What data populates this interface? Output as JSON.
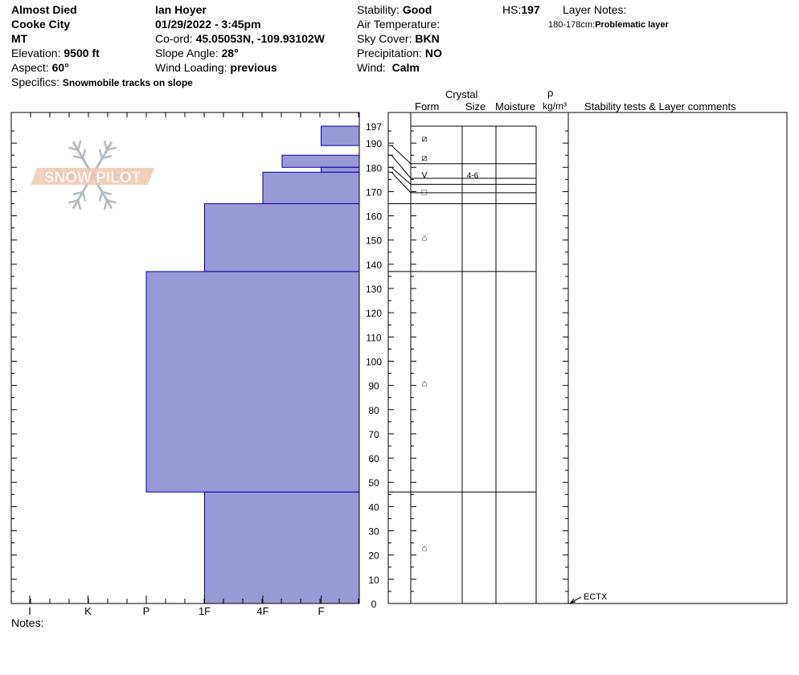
{
  "header": {
    "location_name": "Almost Died",
    "area": "Cooke City",
    "state": "MT",
    "elevation_label": "Elevation:",
    "elevation_value": "9500 ft",
    "aspect_label": "Aspect:",
    "aspect_value": "60°",
    "specifics_label": "Specifics:",
    "specifics_value": "Snowmobile tracks on slope",
    "observer": "Ian Hoyer",
    "datetime": "01/29/2022 - 3:45pm",
    "coord_label": "Co-ord:",
    "coord_value": "45.05053N, -109.93102W",
    "slope_label": "Slope Angle:",
    "slope_value": "28°",
    "wind_loading_label": "Wind Loading:",
    "wind_loading_value": "previous",
    "stability_label": "Stability:",
    "stability_value": "Good",
    "air_temp_label": "Air Temperature:",
    "sky_label": "Sky Cover:",
    "sky_value": "BKN",
    "precip_label": "Precipitation:",
    "precip_value": "NO",
    "wind_label": "Wind:",
    "wind_value": "Calm",
    "hs_label": "HS:",
    "hs_value": "197",
    "layer_notes_label": "Layer Notes:",
    "layer_note_range": "180-178cm:",
    "layer_note_text": "Problematic layer"
  },
  "logo": {
    "text": "SNOW PILOT",
    "icon": "snowflake-icon"
  },
  "table_headers": {
    "crystal": "Crystal",
    "form": "Form",
    "size": "Size",
    "moisture": "Moisture",
    "rho": "ρ",
    "density_unit": "kg/m³",
    "comments": "Stability tests & Layer comments"
  },
  "notes_label": "Notes:",
  "colors": {
    "bar_fill": "#9999d6",
    "bar_stroke": "#0000aa",
    "logo_fill": "#f0c8b4",
    "logo_snowflake": "#b0bcc8"
  },
  "chart_data": {
    "type": "bar",
    "orientation": "horizontal-step",
    "title": "",
    "x_categories": [
      "I",
      "K",
      "P",
      "1F",
      "4F",
      "F"
    ],
    "ylabel": "",
    "ylim": [
      0,
      197
    ],
    "y_ticks": [
      0,
      10,
      20,
      30,
      40,
      50,
      60,
      70,
      80,
      90,
      100,
      110,
      120,
      130,
      140,
      150,
      160,
      170,
      180,
      190,
      197
    ],
    "hardness_levels": [
      1,
      2,
      3,
      4,
      5,
      6
    ],
    "layers": [
      {
        "top": 197,
        "bottom": 189,
        "hardness": "F",
        "hardness_value": 6.0,
        "form": "⧄",
        "size": "",
        "label_height": 192
      },
      {
        "top": 185,
        "bottom": 180,
        "hardness": "F+",
        "hardness_value": 5.33,
        "form": "⧄",
        "size": "",
        "label_height": 184
      },
      {
        "top": 180,
        "bottom": 178,
        "hardness": "F",
        "hardness_value": 6.0,
        "form": "V",
        "size": "4-6",
        "label_height": 177
      },
      {
        "top": 178,
        "bottom": 165,
        "hardness": "4F",
        "hardness_value": 5.0,
        "form": "□",
        "size": "",
        "label_height": 170
      },
      {
        "top": 165,
        "bottom": 137,
        "hardness": "1F",
        "hardness_value": 4.0,
        "form": "⌂",
        "size": "",
        "label_height": 151
      },
      {
        "top": 137,
        "bottom": 46,
        "hardness": "P",
        "hardness_value": 3.0,
        "form": "⌂",
        "size": "",
        "label_height": 91
      },
      {
        "top": 46,
        "bottom": 0,
        "hardness": "1F",
        "hardness_value": 4.0,
        "form": "⌂",
        "size": "",
        "label_height": 23
      }
    ],
    "stability_tests": [
      {
        "height": 0,
        "text": "ECTX"
      }
    ]
  }
}
